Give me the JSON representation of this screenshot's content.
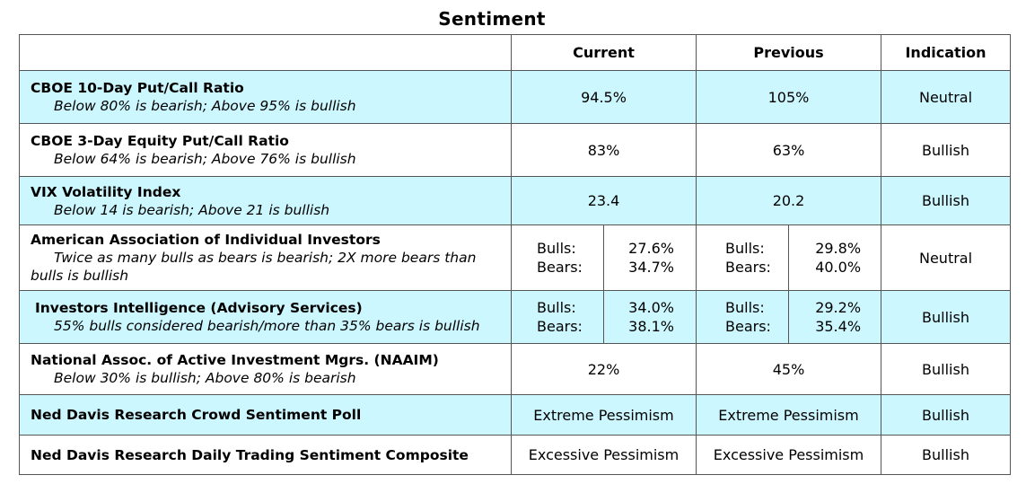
{
  "title": "Sentiment",
  "headers": {
    "current": "Current",
    "previous": "Previous",
    "indication": "Indication"
  },
  "rows": [
    {
      "name": "CBOE 10-Day Put/Call Ratio",
      "note": "Below 80% is bearish; Above 95% is bullish",
      "current": "94.5%",
      "previous": "105%",
      "indication": "Neutral"
    },
    {
      "name": "CBOE 3-Day Equity Put/Call Ratio",
      "note": "Below 64% is bearish; Above 76% is bullish",
      "current": "83%",
      "previous": "63%",
      "indication": "Bullish"
    },
    {
      "name": "VIX Volatility Index",
      "note": "Below 14 is bearish; Above 21 is bullish",
      "current": "23.4",
      "previous": "20.2",
      "indication": "Bullish"
    },
    {
      "name": "American Association of Individual Investors",
      "note": "Twice as many bulls as bears is bearish; 2X more bears than bulls is bullish",
      "bulls_label": "Bulls:",
      "bears_label": "Bears:",
      "current_bulls": "27.6%",
      "current_bears": "34.7%",
      "previous_bulls": "29.8%",
      "previous_bears": "40.0%",
      "indication": "Neutral"
    },
    {
      "name": "Investors Intelligence (Advisory Services)",
      "note": "55% bulls considered bearish/more than 35% bears is bullish",
      "bulls_label": "Bulls:",
      "bears_label": "Bears:",
      "current_bulls": "34.0%",
      "current_bears": "38.1%",
      "previous_bulls": "29.2%",
      "previous_bears": "35.4%",
      "indication": "Bullish"
    },
    {
      "name": "National Assoc. of Active Investment Mgrs. (NAAIM)",
      "note": "Below 30% is bullish; Above 80% is bearish",
      "current": "22%",
      "previous": "45%",
      "indication": "Bullish"
    },
    {
      "name": "Ned Davis Research Crowd Sentiment Poll",
      "current": "Extreme Pessimism",
      "previous": "Extreme Pessimism",
      "indication": "Bullish"
    },
    {
      "name": "Ned Davis Research Daily Trading Sentiment Composite",
      "current": "Excessive Pessimism",
      "previous": "Excessive Pessimism",
      "indication": "Bullish"
    }
  ],
  "colors": {
    "highlight_row": "#ccf7ff",
    "border": "#555555"
  }
}
